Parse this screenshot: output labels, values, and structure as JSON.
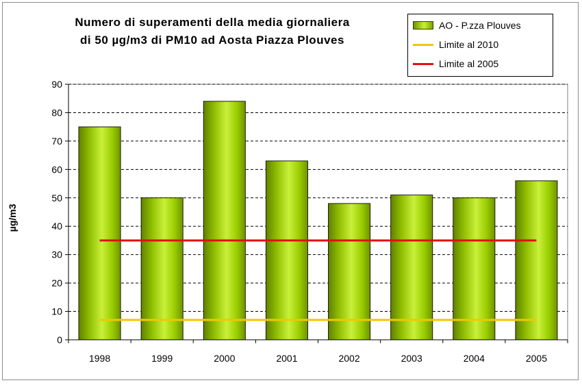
{
  "chart_data": {
    "type": "bar",
    "title_lines": [
      "Numero di superamenti della media giornaliera",
      "di 50 µg/m3 di PM10 ad Aosta Piazza Plouves"
    ],
    "xlabel": "",
    "ylabel": "µg/m3",
    "categories": [
      "1998",
      "1999",
      "2000",
      "2001",
      "2002",
      "2003",
      "2004",
      "2005"
    ],
    "series": [
      {
        "name": "AO - P.zza Plouves",
        "type": "bar",
        "values": [
          75,
          50,
          84,
          63,
          48,
          51,
          50,
          56
        ],
        "color": "#9acd00"
      }
    ],
    "reference_lines": [
      {
        "name": "Limite al 2010",
        "value": 7,
        "color": "#f0c800"
      },
      {
        "name": "Limite al 2005",
        "value": 35,
        "color": "#e01010"
      }
    ],
    "ylim": [
      0,
      90
    ],
    "yticks": [
      "0",
      "10",
      "20",
      "30",
      "40",
      "50",
      "60",
      "70",
      "80",
      "90"
    ],
    "grid": "horizontal dashed",
    "legend_position": "top-right"
  }
}
